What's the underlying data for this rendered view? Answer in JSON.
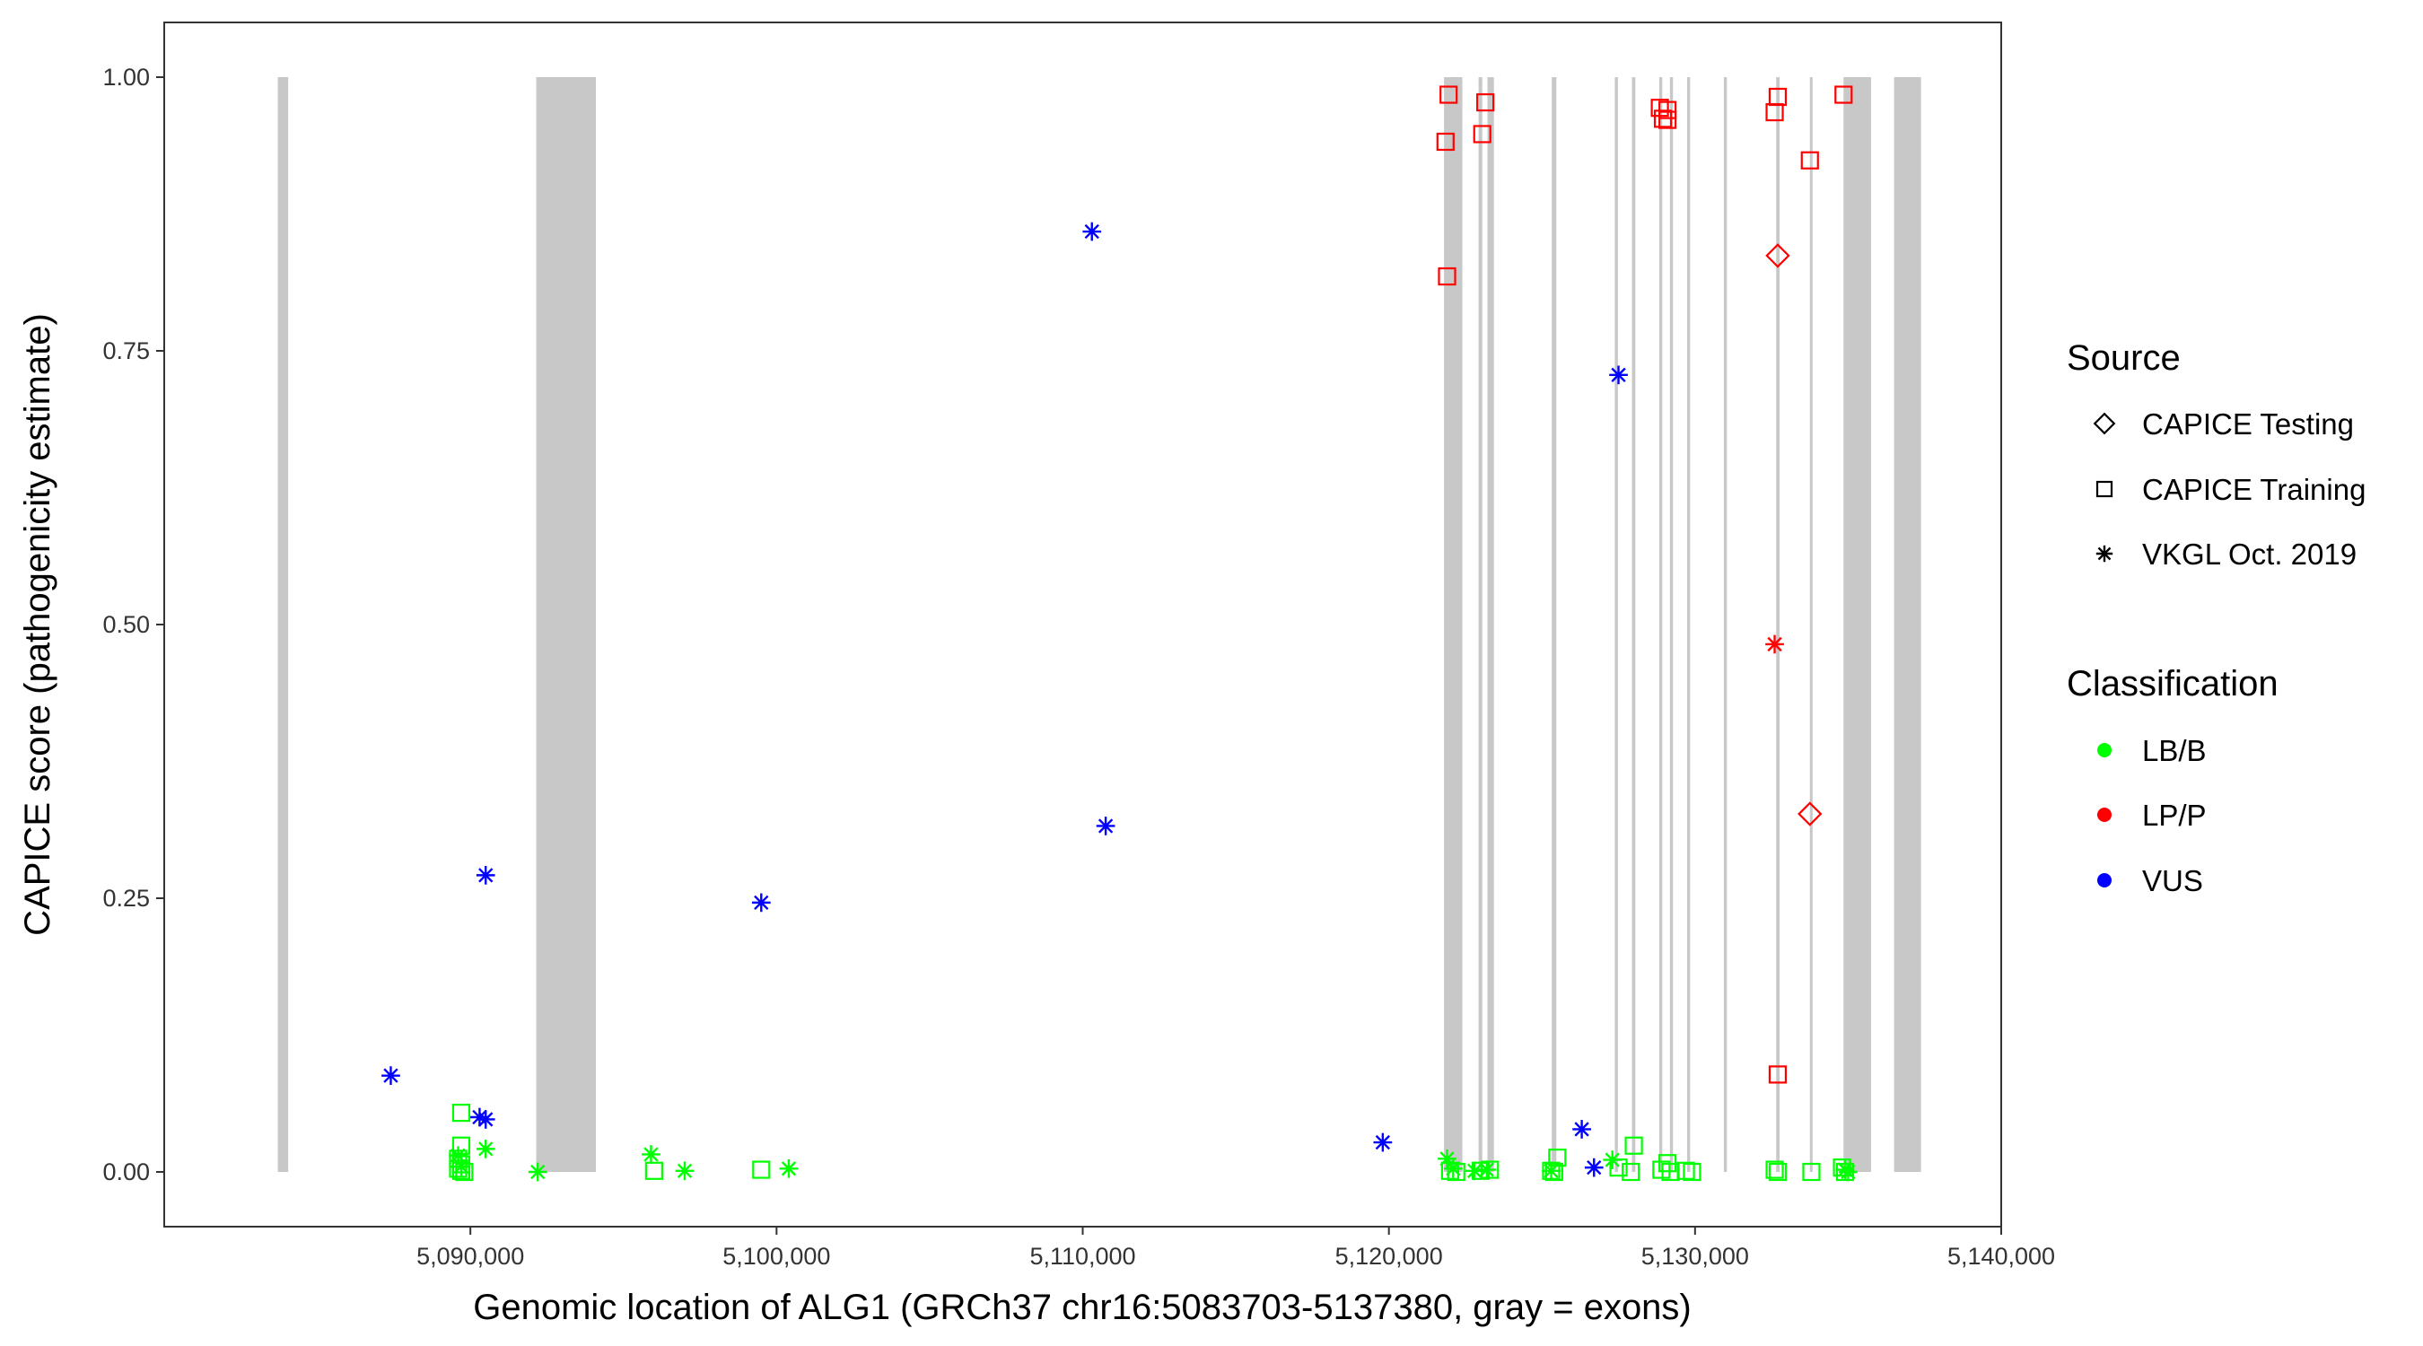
{
  "chart_data": {
    "type": "scatter",
    "title": "",
    "xlabel": "Genomic location of ALG1 (GRCh37 chr16:5083703-5137380, gray = exons)",
    "ylabel": "CAPICE score (pathogenicity estimate)",
    "xlim": [
      5080000,
      5140000
    ],
    "ylim": [
      -0.05,
      1.05
    ],
    "x_ticks": [
      5090000,
      5100000,
      5110000,
      5120000,
      5130000,
      5140000
    ],
    "x_tick_labels": [
      "5,090,000",
      "5,100,000",
      "5,110,000",
      "5,120,000",
      "5,130,000",
      "5,140,000"
    ],
    "y_ticks": [
      0,
      0.25,
      0.5,
      0.75,
      1
    ],
    "y_tick_labels": [
      "0.00",
      "0.25",
      "0.50",
      "0.75",
      "1.00"
    ],
    "grid": false,
    "legend_position": "right",
    "exons": [
      [
        5083710,
        5084050
      ],
      [
        5092150,
        5094100
      ],
      [
        5121800,
        5122400
      ],
      [
        5122930,
        5123050
      ],
      [
        5123220,
        5123430
      ],
      [
        5125320,
        5125470
      ],
      [
        5127380,
        5127480
      ],
      [
        5127940,
        5128050
      ],
      [
        5128830,
        5128930
      ],
      [
        5129180,
        5129280
      ],
      [
        5129740,
        5129840
      ],
      [
        5130940,
        5131040
      ],
      [
        5132650,
        5132760
      ],
      [
        5133750,
        5133840
      ],
      [
        5134850,
        5135750
      ],
      [
        5136500,
        5137380
      ]
    ],
    "legend": {
      "source_title": "Source",
      "source_items": [
        {
          "label": "CAPICE Testing",
          "shape": "diamond"
        },
        {
          "label": "CAPICE Training",
          "shape": "square"
        },
        {
          "label": "VKGL Oct. 2019",
          "shape": "asterisk"
        }
      ],
      "class_title": "Classification",
      "class_items": [
        {
          "label": "LB/B",
          "color": "#00ff00"
        },
        {
          "label": "LP/P",
          "color": "#ff0000"
        },
        {
          "label": "VUS",
          "color": "#0000ff"
        }
      ]
    },
    "series": [
      {
        "source": "CAPICE Training",
        "classification": "LP/P",
        "points": [
          [
            5121950,
            0.984
          ],
          [
            5121850,
            0.941
          ],
          [
            5121900,
            0.818
          ],
          [
            5123050,
            0.948
          ],
          [
            5123150,
            0.977
          ],
          [
            5128850,
            0.972
          ],
          [
            5129100,
            0.97
          ],
          [
            5128950,
            0.962
          ],
          [
            5129100,
            0.961
          ],
          [
            5132700,
            0.982
          ],
          [
            5132600,
            0.968
          ],
          [
            5134850,
            0.984
          ],
          [
            5133750,
            0.924
          ],
          [
            5132700,
            0.089
          ]
        ]
      },
      {
        "source": "CAPICE Testing",
        "classification": "LP/P",
        "points": [
          [
            5132700,
            0.837
          ],
          [
            5133750,
            0.327
          ]
        ]
      },
      {
        "source": "VKGL Oct. 2019",
        "classification": "LP/P",
        "points": [
          [
            5132600,
            0.482
          ]
        ]
      },
      {
        "source": "VKGL Oct. 2019",
        "classification": "VUS",
        "points": [
          [
            5110300,
            0.859
          ],
          [
            5127500,
            0.728
          ],
          [
            5110750,
            0.316
          ],
          [
            5090500,
            0.271
          ],
          [
            5099500,
            0.246
          ],
          [
            5087400,
            0.088
          ],
          [
            5090300,
            0.05
          ],
          [
            5090500,
            0.048
          ],
          [
            5119800,
            0.027
          ],
          [
            5126300,
            0.039
          ],
          [
            5126700,
            0.004
          ]
        ]
      },
      {
        "source": "CAPICE Training",
        "classification": "LB/B",
        "points": [
          [
            5089700,
            0.054
          ],
          [
            5089700,
            0.024
          ],
          [
            5089600,
            0.012
          ],
          [
            5089700,
            0.007
          ],
          [
            5089600,
            0.003
          ],
          [
            5089700,
            0.001
          ],
          [
            5089800,
            0.0
          ],
          [
            5096000,
            0.001
          ],
          [
            5099500,
            0.002
          ],
          [
            5122000,
            0.001
          ],
          [
            5122200,
            0.0
          ],
          [
            5123000,
            0.001
          ],
          [
            5123300,
            0.002
          ],
          [
            5125300,
            0.001
          ],
          [
            5125500,
            0.013
          ],
          [
            5125400,
            0.0
          ],
          [
            5127500,
            0.004
          ],
          [
            5128000,
            0.024
          ],
          [
            5127900,
            0.0
          ],
          [
            5128900,
            0.002
          ],
          [
            5129100,
            0.008
          ],
          [
            5129200,
            0.0
          ],
          [
            5129700,
            0.001
          ],
          [
            5129900,
            0.0
          ],
          [
            5132600,
            0.002
          ],
          [
            5132700,
            0.0
          ],
          [
            5133800,
            0.0
          ],
          [
            5134800,
            0.004
          ],
          [
            5134900,
            0.0
          ]
        ]
      },
      {
        "source": "VKGL Oct. 2019",
        "classification": "LB/B",
        "points": [
          [
            5089600,
            0.015
          ],
          [
            5089700,
            0.005
          ],
          [
            5090500,
            0.021
          ],
          [
            5092200,
            0.0
          ],
          [
            5095900,
            0.016
          ],
          [
            5097000,
            0.001
          ],
          [
            5100400,
            0.003
          ],
          [
            5121900,
            0.012
          ],
          [
            5122100,
            0.003
          ],
          [
            5122800,
            0.001
          ],
          [
            5123200,
            0.002
          ],
          [
            5125300,
            0.001
          ],
          [
            5127300,
            0.011
          ],
          [
            5134900,
            0.002
          ],
          [
            5135000,
            0.0
          ]
        ]
      }
    ]
  }
}
